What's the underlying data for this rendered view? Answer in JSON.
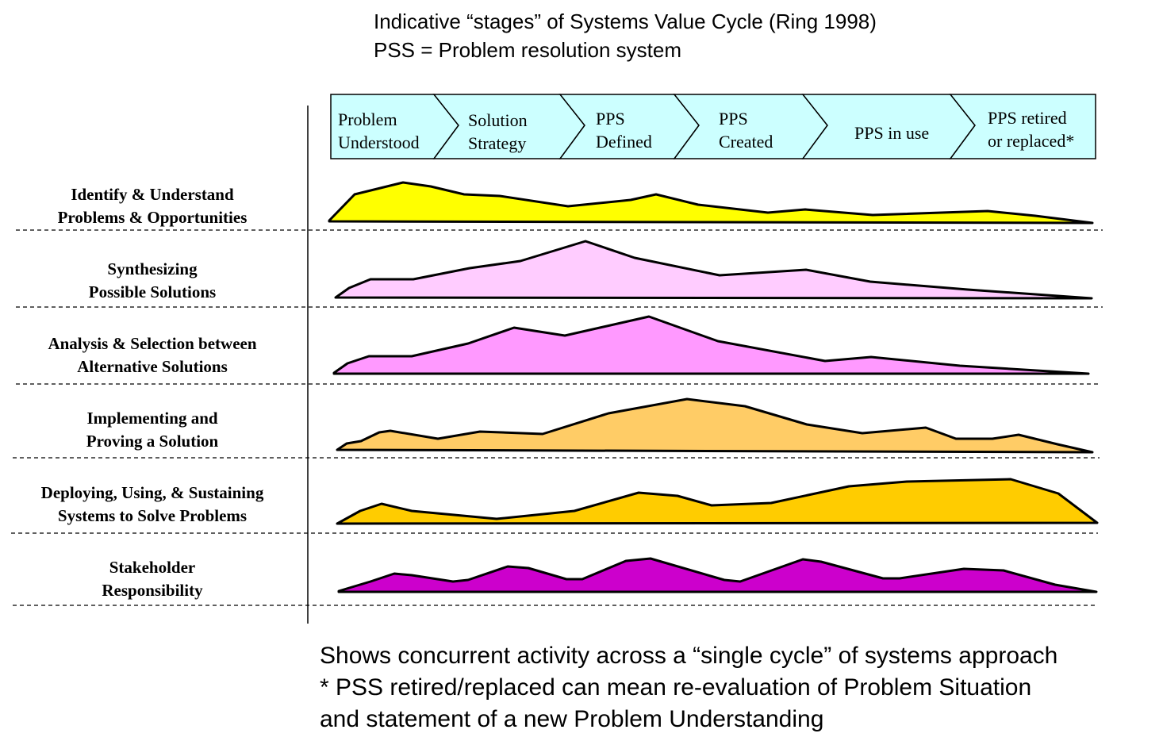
{
  "header": {
    "line1": "Indicative “stages” of Systems Value Cycle (Ring 1998)",
    "line2": "PSS = Problem resolution system"
  },
  "stages": [
    {
      "line1": "Problem",
      "line2": "Understood"
    },
    {
      "line1": "Solution",
      "line2": "Strategy"
    },
    {
      "line1": "PPS",
      "line2": "Defined"
    },
    {
      "line1": "PPS",
      "line2": "Created"
    },
    {
      "line1": "PPS in use",
      "line2": ""
    },
    {
      "line1": "PPS retired",
      "line2": "or replaced*"
    }
  ],
  "colors": {
    "stage_fill": "#ccffff",
    "identify": "#ffff00",
    "synthesizing": "#ffccff",
    "analysis": "#ff99ff",
    "implementing": "#ffcc66",
    "deploying": "#ffcc00",
    "stakeholder": "#cc00cc"
  },
  "rows": [
    {
      "line1": "Identify & Understand",
      "line2": "Problems & Opportunities"
    },
    {
      "line1": "Synthesizing",
      "line2": "Possible Solutions"
    },
    {
      "line1": "Analysis & Selection between",
      "line2": "Alternative Solutions"
    },
    {
      "line1": "Implementing and",
      "line2": "Proving a Solution"
    },
    {
      "line1": "Deploying, Using, & Sustaining",
      "line2": "Systems to Solve Problems"
    },
    {
      "line1": "Stakeholder",
      "line2": "Responsibility"
    }
  ],
  "footer": {
    "line1": "Shows concurrent activity across a “single cycle” of systems approach",
    "line2": "* PSS retired/replaced can mean re-evaluation of Problem Situation",
    "line3": "and statement of a new Problem Understanding"
  }
}
